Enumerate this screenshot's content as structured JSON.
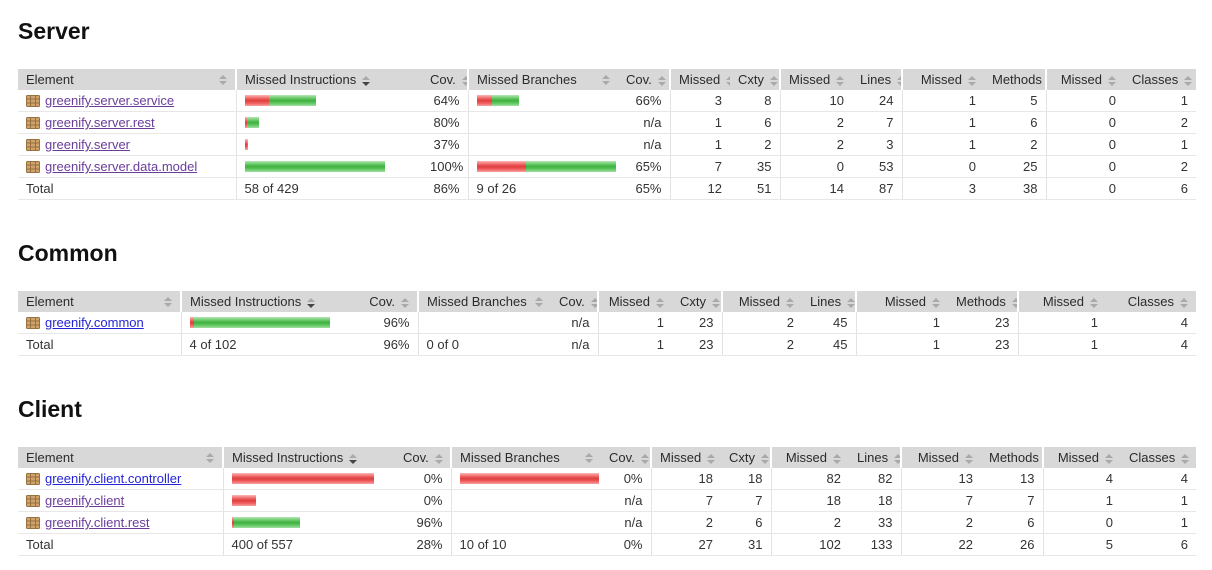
{
  "report": {
    "columns": [
      {
        "label": "Element",
        "sorted": false
      },
      {
        "label": "Missed Instructions",
        "sorted": true
      },
      {
        "label": "Cov.",
        "sorted": false
      },
      {
        "label": "Missed Branches",
        "sorted": false
      },
      {
        "label": "Cov.",
        "sorted": false
      },
      {
        "label": "Missed",
        "sorted": false
      },
      {
        "label": "Cxty",
        "sorted": false
      },
      {
        "label": "Missed",
        "sorted": false
      },
      {
        "label": "Lines",
        "sorted": false
      },
      {
        "label": "Missed",
        "sorted": false
      },
      {
        "label": "Methods",
        "sorted": false
      },
      {
        "label": "Missed",
        "sorted": false
      },
      {
        "label": "Classes",
        "sorted": false
      }
    ],
    "colors": {
      "bar_red": "#ee4343",
      "bar_green": "#44bd44",
      "link_visited": "#6a3d9b",
      "link_unvisited": "#2525d6",
      "header_bg": "#d8d8d8"
    },
    "icons": {
      "package": "package-icon",
      "sort": "sort-icon"
    },
    "sections": [
      {
        "title": "Server",
        "rows": [
          {
            "element": "greenify.server.service",
            "link_state": "visited",
            "cells": [
              {
                "bar": {
                  "red": 24,
                  "green": 47
                }
              },
              "64%",
              {
                "bar": {
                  "red": 15,
                  "green": 27
                }
              },
              "66%",
              "3",
              "8",
              "10",
              "24",
              "1",
              "5",
              "0",
              "1"
            ]
          },
          {
            "element": "greenify.server.rest",
            "link_state": "visited",
            "cells": [
              {
                "bar": {
                  "red": 2,
                  "green": 12
                }
              },
              "80%",
              "",
              "n/a",
              "1",
              "6",
              "2",
              "7",
              "1",
              "6",
              "0",
              "2"
            ]
          },
          {
            "element": "greenify.server",
            "link_state": "visited",
            "cells": [
              {
                "bar": {
                  "red": 2,
                  "green": 1
                }
              },
              "37%",
              "",
              "n/a",
              "1",
              "2",
              "2",
              "3",
              "1",
              "2",
              "0",
              "1"
            ]
          },
          {
            "element": "greenify.server.data.model",
            "link_state": "visited",
            "cells": [
              {
                "bar": {
                  "red": 0,
                  "green": 140
                }
              },
              "100%",
              {
                "bar": {
                  "red": 49,
                  "green": 91
                }
              },
              "65%",
              "7",
              "35",
              "0",
              "53",
              "0",
              "25",
              "0",
              "2"
            ]
          }
        ],
        "total": {
          "label": "Total",
          "cells": [
            "58 of 429",
            "86%",
            "9 of 26",
            "65%",
            "12",
            "51",
            "14",
            "87",
            "3",
            "38",
            "0",
            "6"
          ]
        }
      },
      {
        "title": "Common",
        "rows": [
          {
            "element": "greenify.common",
            "link_state": "fresh",
            "cells": [
              {
                "bar": {
                  "red": 4,
                  "green": 136
                }
              },
              "96%",
              "",
              "n/a",
              "1",
              "23",
              "2",
              "45",
              "1",
              "23",
              "1",
              "4"
            ]
          }
        ],
        "total": {
          "label": "Total",
          "cells": [
            "4 of 102",
            "96%",
            "0 of 0",
            "n/a",
            "1",
            "23",
            "2",
            "45",
            "1",
            "23",
            "1",
            "4"
          ]
        }
      },
      {
        "title": "Client",
        "rows": [
          {
            "element": "greenify.client.controller",
            "link_state": "fresh",
            "cells": [
              {
                "bar": {
                  "red": 142,
                  "green": 0
                }
              },
              "0%",
              {
                "bar": {
                  "red": 140,
                  "green": 0
                }
              },
              "0%",
              "18",
              "18",
              "82",
              "82",
              "13",
              "13",
              "4",
              "4"
            ]
          },
          {
            "element": "greenify.client",
            "link_state": "visited",
            "cells": [
              {
                "bar": {
                  "red": 24,
                  "green": 0
                }
              },
              "0%",
              "",
              "n/a",
              "7",
              "7",
              "18",
              "18",
              "7",
              "7",
              "1",
              "1"
            ]
          },
          {
            "element": "greenify.client.rest",
            "link_state": "visited",
            "cells": [
              {
                "bar": {
                  "red": 2,
                  "green": 66
                }
              },
              "96%",
              "",
              "n/a",
              "2",
              "6",
              "2",
              "33",
              "2",
              "6",
              "0",
              "1"
            ]
          }
        ],
        "total": {
          "label": "Total",
          "cells": [
            "400 of 557",
            "28%",
            "10 of 10",
            "0%",
            "27",
            "31",
            "102",
            "133",
            "22",
            "26",
            "5",
            "6"
          ]
        }
      }
    ]
  }
}
